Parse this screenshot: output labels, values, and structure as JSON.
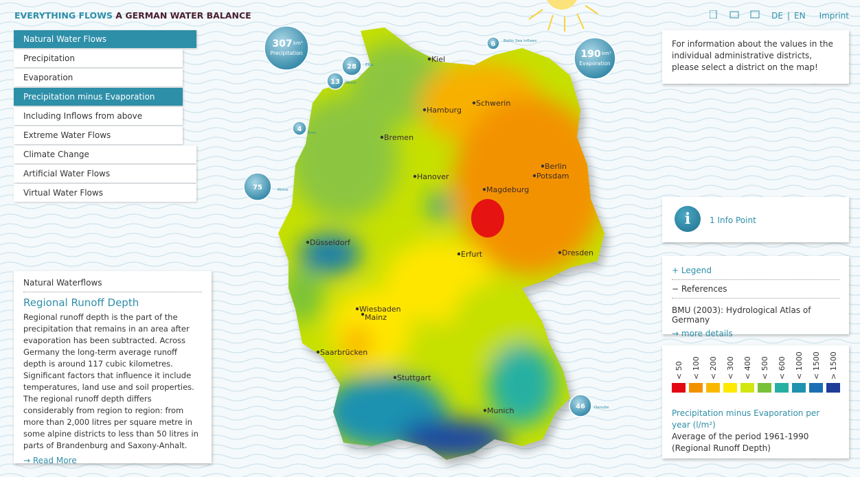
{
  "header": {
    "brand": "EVERYTHING FLOWS",
    "subtitle": "A GERMAN WATER BALANCE",
    "lang_de": "DE",
    "separator": "|",
    "lang_en": "EN",
    "imprint": "Imprint"
  },
  "menu": {
    "items": [
      {
        "label": "Natural Water Flows",
        "active": true
      },
      {
        "label": "Precipitation",
        "active": false
      },
      {
        "label": "Evaporation",
        "active": false
      },
      {
        "label": "Precipitation minus Evaporation",
        "active": true
      },
      {
        "label": "Including Inflows from above",
        "active": false
      },
      {
        "label": "Extreme Water Flows",
        "active": false
      },
      {
        "label": "Climate Change",
        "active": false
      },
      {
        "label": "Artificial Water Flows",
        "active": false
      },
      {
        "label": "Virtual Water Flows",
        "active": false
      }
    ]
  },
  "article": {
    "category": "Natural Waterflows",
    "title": "Regional Runoff Depth",
    "body": "Regional runoff depth is the part of the precipitation that remains in an area after evaporation has been subtracted. Across Germany the long-term average runoff depth is around 117 cubic kilometres. Significant factors that influence it include temperatures, land use and soil properties. The regional runoff depth differs considerably from region to region: from more than 2,000 litres per square metre in some alpine districts to less than 50 litres in parts of Brandenburg and Saxony-Anhalt.",
    "link": "Read More"
  },
  "info": {
    "text": "For information about the values in the individual administrative districts, please select a district on the map!"
  },
  "info_point": {
    "label": "1 Info Point"
  },
  "references": {
    "legend": "Legend",
    "references": "References",
    "citation": "BMU (2003): Hydrological Atlas of Germany",
    "link": "more details"
  },
  "legend": {
    "classes": [
      {
        "label": "< 50",
        "color": "#e30613"
      },
      {
        "label": "< 100",
        "color": "#f39200"
      },
      {
        "label": "< 200",
        "color": "#f9b800"
      },
      {
        "label": "< 300",
        "color": "#ffe900"
      },
      {
        "label": "< 400",
        "color": "#d2e612"
      },
      {
        "label": "< 500",
        "color": "#78c23a"
      },
      {
        "label": "< 600",
        "color": "#26b0a2"
      },
      {
        "label": "< 1000",
        "color": "#1f92b0"
      },
      {
        "label": "< 1500",
        "color": "#1a6fb4"
      },
      {
        "label": "> 1500",
        "color": "#1d3d99"
      }
    ],
    "title": "Precipitation minus Evaporation per year (l/m²)",
    "note": "Average of the period 1961-1990 (Regional Runoff Depth)"
  },
  "map": {
    "cities": [
      "Kiel",
      "Hamburg",
      "Schwerin",
      "Bremen",
      "Hanover",
      "Berlin",
      "Potsdam",
      "Magdeburg",
      "Düsseldorf",
      "Erfurt",
      "Dresden",
      "Wiesbaden",
      "Mainz",
      "Saarbrücken",
      "Stuttgart",
      "Munich"
    ],
    "flows": [
      {
        "value": 307,
        "unit": "km³",
        "label": "Precipitation"
      },
      {
        "value": 190,
        "unit": "km³",
        "label": "Evaporation"
      },
      {
        "value": 28,
        "label": "Elbe"
      },
      {
        "value": 13,
        "label": "Weser"
      },
      {
        "value": 4,
        "label": "Ems"
      },
      {
        "value": 75,
        "label": "Rhine"
      },
      {
        "value": 6,
        "label": "Baltic Sea inflows"
      },
      {
        "value": 46,
        "label": "Danube"
      }
    ]
  }
}
